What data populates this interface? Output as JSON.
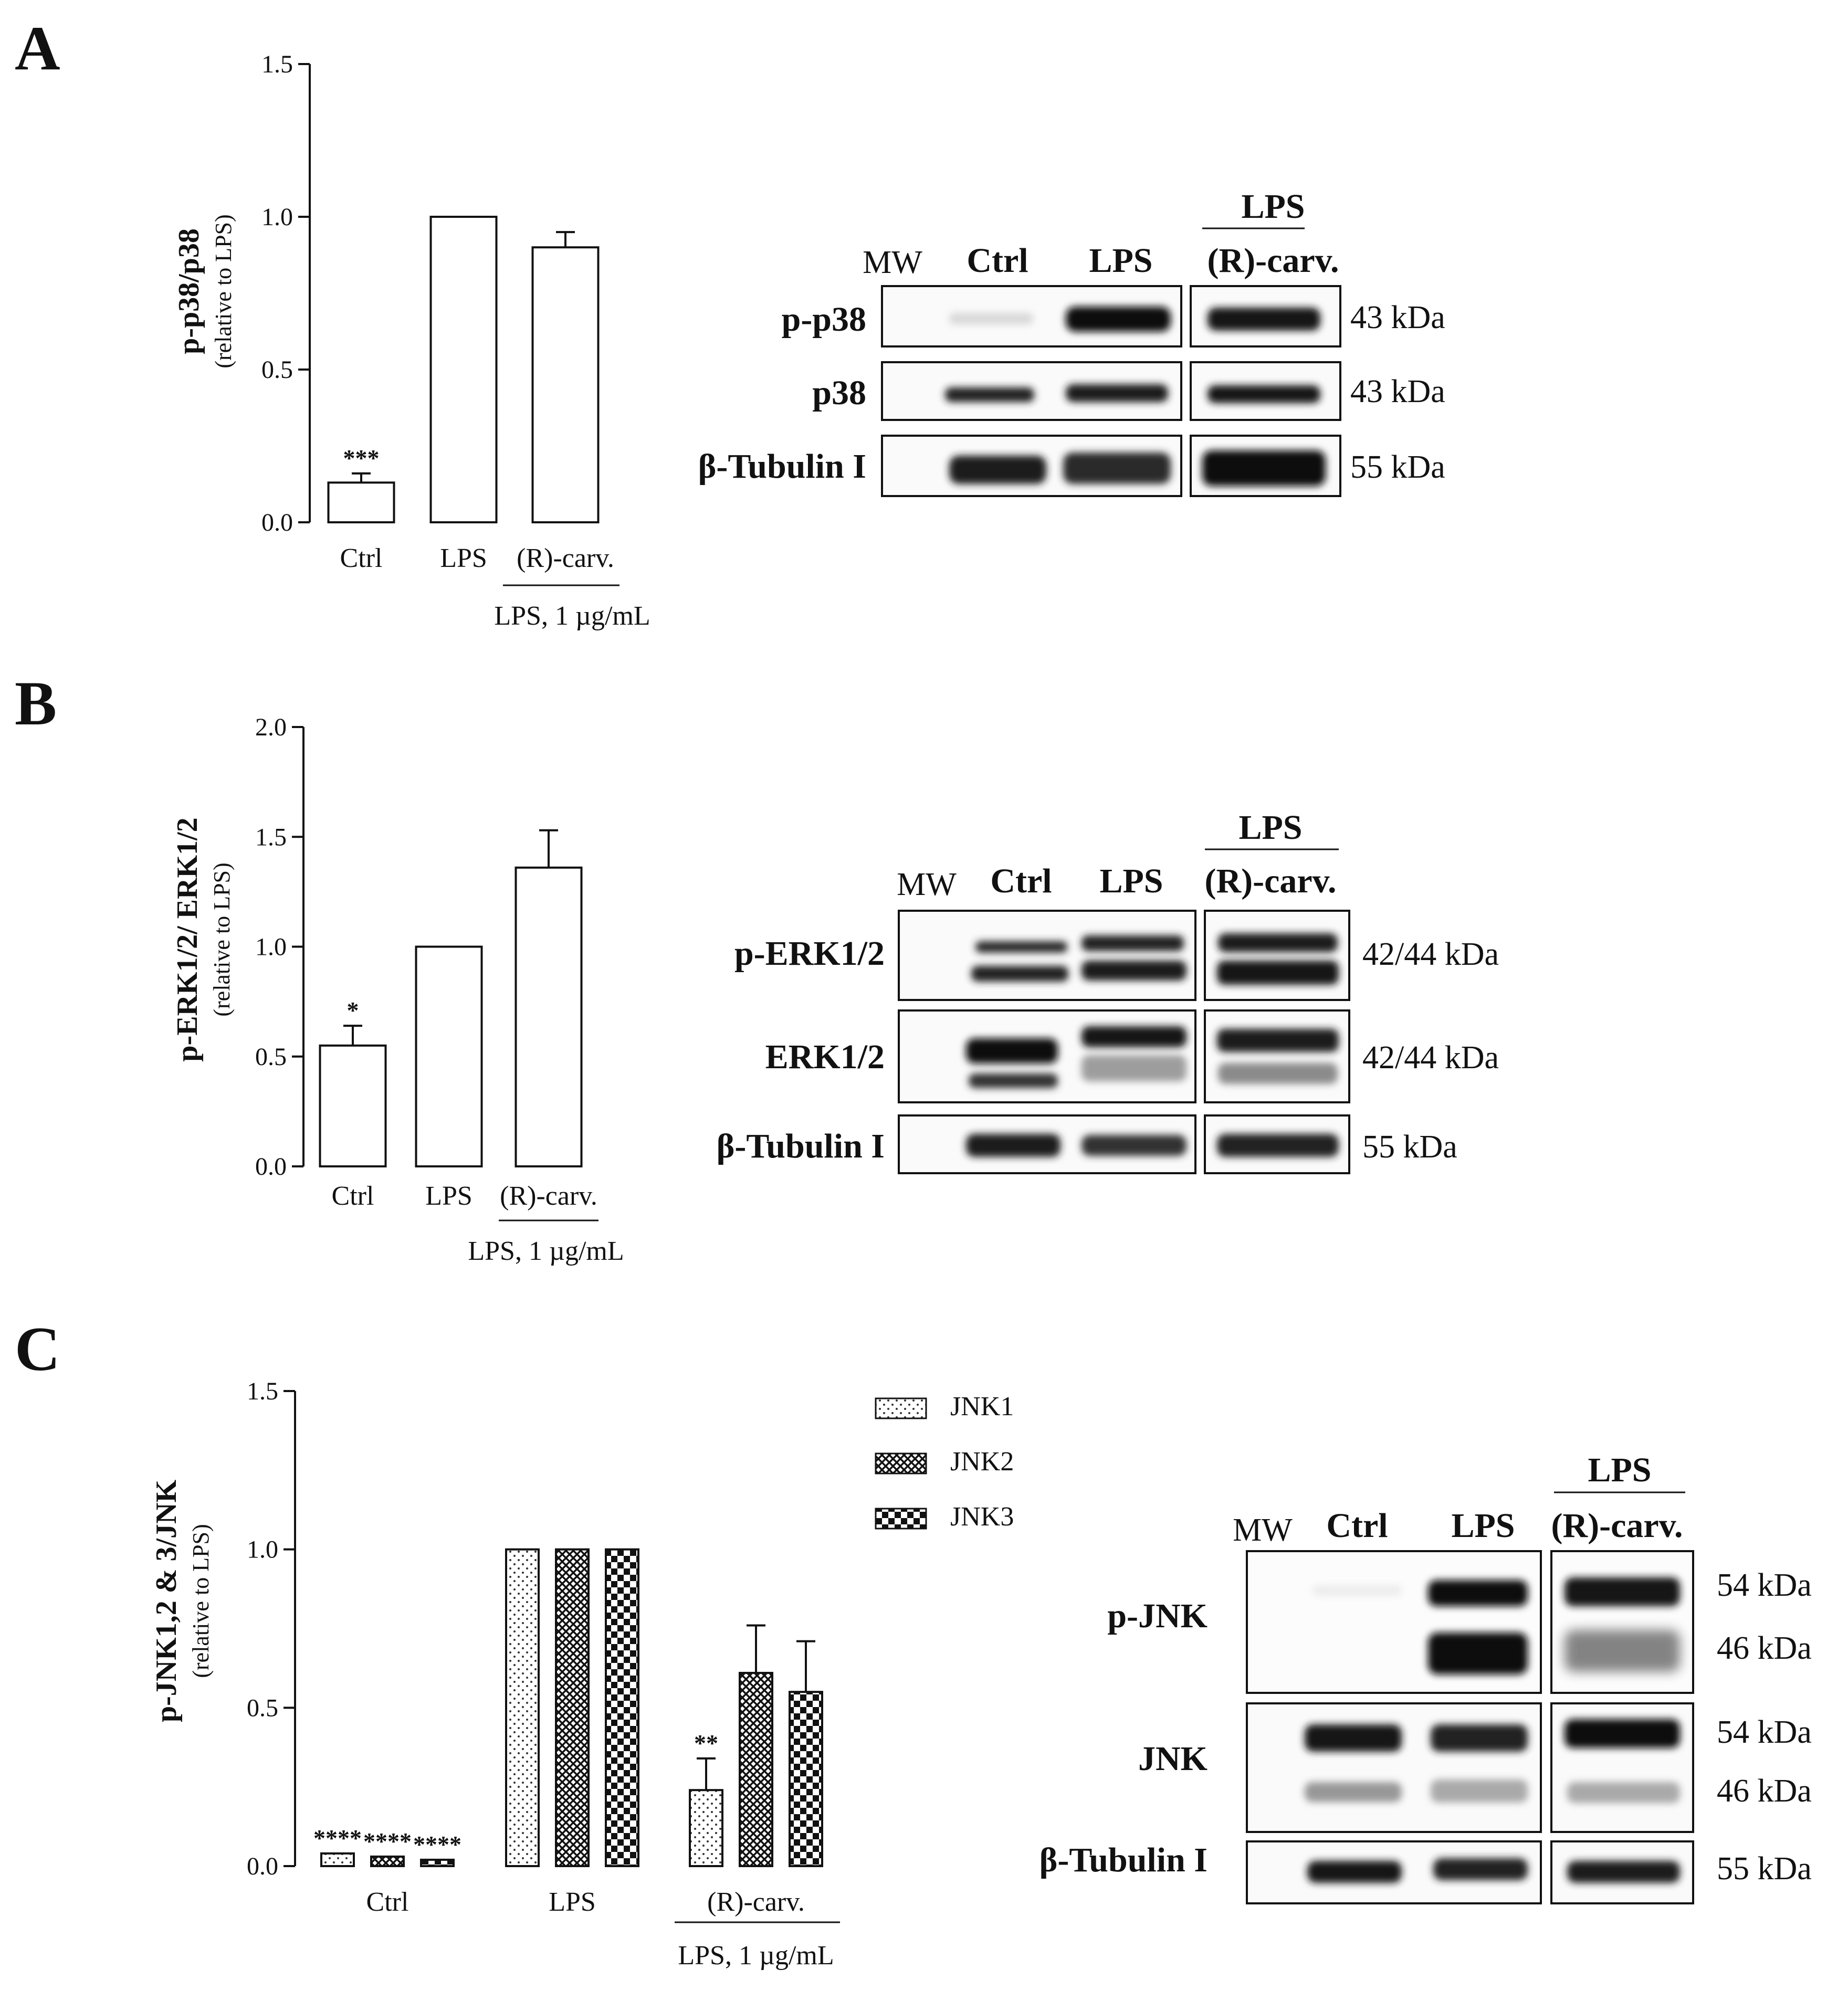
{
  "panels": [
    {
      "letter": "A",
      "ylabel": "p-p38/p38",
      "ylabel_sub": "(relative to LPS)",
      "group_label": "LPS, 1 µg/mL",
      "wb": {
        "header_mw": "MW",
        "header_lanes": [
          "Ctrl",
          "LPS",
          "(R)-carv."
        ],
        "header_group": "LPS",
        "rows": [
          {
            "label": "p-p38",
            "kda": [
              "43 kDa"
            ]
          },
          {
            "label": "p38",
            "kda": [
              "43 kDa"
            ]
          },
          {
            "label": "β-Tubulin I",
            "kda": [
              "55 kDa"
            ]
          }
        ]
      }
    },
    {
      "letter": "B",
      "ylabel": "p-ERK1/2/ ERK1/2",
      "ylabel_sub": "(relative to LPS)",
      "group_label": "LPS, 1 µg/mL",
      "wb": {
        "header_mw": "MW",
        "header_lanes": [
          "Ctrl",
          "LPS",
          "(R)-carv."
        ],
        "header_group": "LPS",
        "rows": [
          {
            "label": "p-ERK1/2",
            "kda": [
              "42/44 kDa"
            ]
          },
          {
            "label": "ERK1/2",
            "kda": [
              "42/44 kDa"
            ]
          },
          {
            "label": "β-Tubulin I",
            "kda": [
              "55 kDa"
            ]
          }
        ]
      }
    },
    {
      "letter": "C",
      "ylabel": "p-JNK1,2 & 3/JNK",
      "ylabel_sub": "(relative to LPS)",
      "group_label": "LPS, 1 µg/mL",
      "wb": {
        "header_mw": "MW",
        "header_lanes": [
          "Ctrl",
          "LPS",
          "(R)-carv."
        ],
        "header_group": "LPS",
        "rows": [
          {
            "label": "p-JNK",
            "kda": [
              "54 kDa",
              "46 kDa"
            ]
          },
          {
            "label": "JNK",
            "kda": [
              "54 kDa",
              "46 kDa"
            ]
          },
          {
            "label": "β-Tubulin I",
            "kda": [
              "55 kDa"
            ]
          }
        ]
      }
    }
  ],
  "chart_data": [
    {
      "type": "bar",
      "categories": [
        "Ctrl",
        "LPS",
        "(R)-carv."
      ],
      "values": [
        0.13,
        1.0,
        0.9
      ],
      "errors": [
        0.03,
        0.0,
        0.05
      ],
      "significance": [
        "***",
        "",
        ""
      ],
      "ylabel": "p-p38/p38 (relative to LPS)",
      "yticks": [
        "0.0",
        "0.5",
        "1.0",
        "1.5"
      ],
      "ylim": [
        0,
        1.5
      ]
    },
    {
      "type": "bar",
      "categories": [
        "Ctrl",
        "LPS",
        "(R)-carv."
      ],
      "values": [
        0.55,
        1.0,
        1.36
      ],
      "errors": [
        0.09,
        0.0,
        0.17
      ],
      "significance": [
        "*",
        "",
        ""
      ],
      "ylabel": "p-ERK1/2/ ERK1/2 (relative to LPS)",
      "yticks": [
        "0.0",
        "0.5",
        "1.0",
        "1.5",
        "2.0"
      ],
      "ylim": [
        0,
        2.0
      ]
    },
    {
      "type": "bar",
      "categories": [
        "Ctrl",
        "LPS",
        "(R)-carv."
      ],
      "series": [
        {
          "name": "JNK1",
          "values": [
            0.04,
            1.0,
            0.24
          ],
          "errors": [
            0.0,
            0.0,
            0.1
          ],
          "significance": [
            "****",
            "",
            "**"
          ]
        },
        {
          "name": "JNK2",
          "values": [
            0.03,
            1.0,
            0.61
          ],
          "errors": [
            0.0,
            0.0,
            0.15
          ],
          "significance": [
            "****",
            "",
            ""
          ]
        },
        {
          "name": "JNK3",
          "values": [
            0.02,
            1.0,
            0.55
          ],
          "errors": [
            0.0,
            0.0,
            0.16
          ],
          "significance": [
            "****",
            "",
            ""
          ]
        }
      ],
      "ylabel": "p-JNK1,2 & 3/JNK (relative to LPS)",
      "yticks": [
        "0.0",
        "0.5",
        "1.0",
        "1.5"
      ],
      "ylim": [
        0,
        1.5
      ],
      "legend": "top-right"
    }
  ]
}
